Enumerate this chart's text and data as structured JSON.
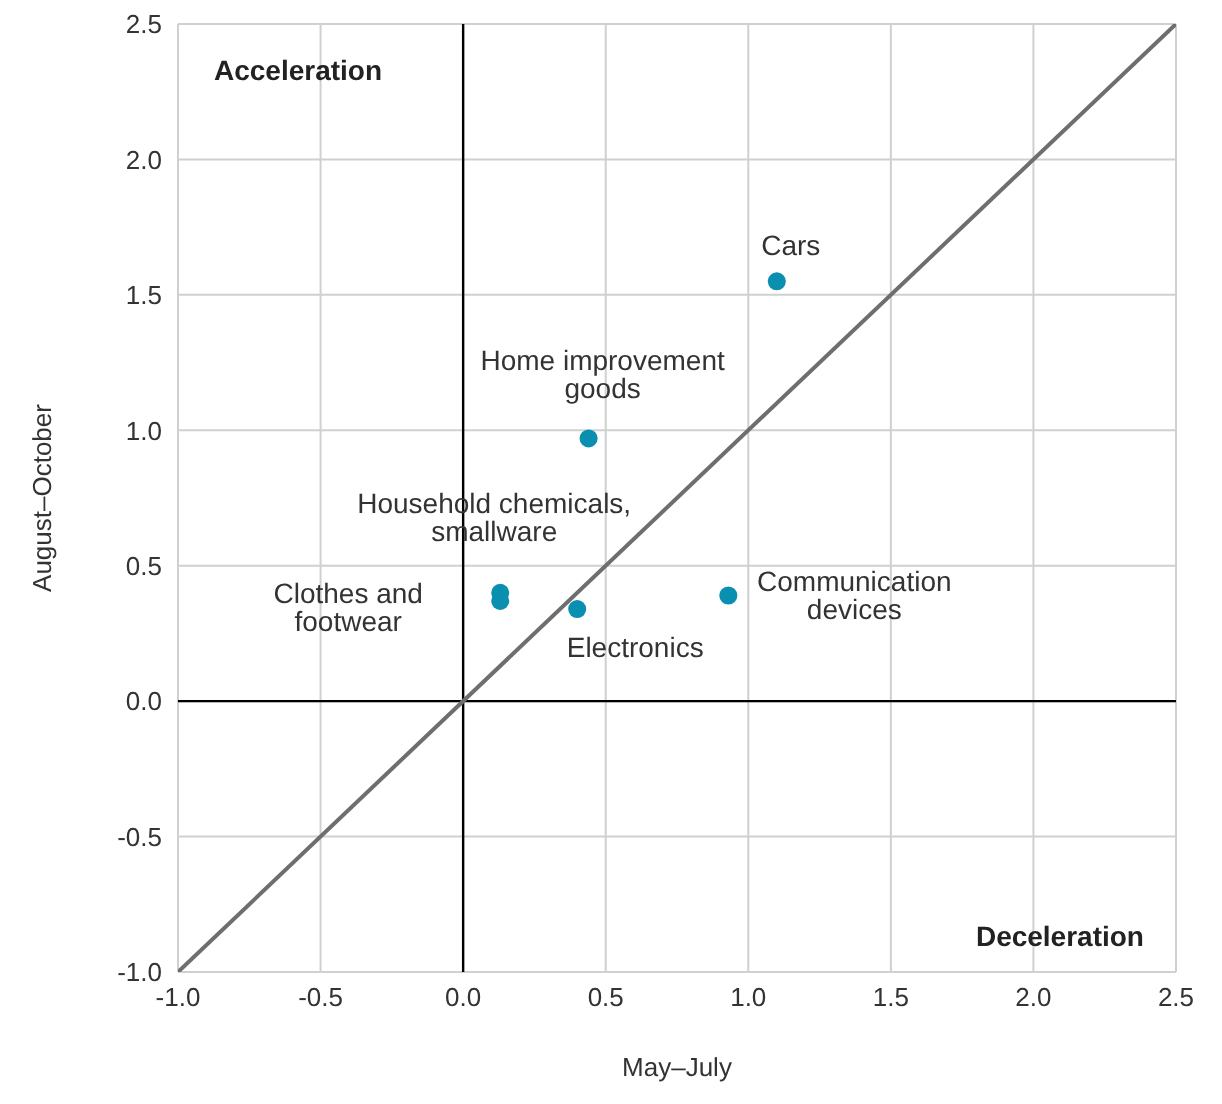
{
  "chart_data": {
    "type": "scatter",
    "xlabel": "May–July",
    "ylabel": "August–October",
    "xlim": [
      -1.0,
      2.5
    ],
    "ylim": [
      -1.0,
      2.5
    ],
    "xticks": [
      {
        "value": -1,
        "label": "-1.0"
      },
      {
        "value": -0.5,
        "label": "-0.5"
      },
      {
        "value": 0,
        "label": "0.0"
      },
      {
        "value": 0.5,
        "label": "0.5"
      },
      {
        "value": 1,
        "label": "1.0"
      },
      {
        "value": 1.5,
        "label": "1.5"
      },
      {
        "value": 2,
        "label": "2.0"
      },
      {
        "value": 2.5,
        "label": "2.5"
      }
    ],
    "yticks": [
      {
        "value": -1,
        "label": "-1.0"
      },
      {
        "value": -0.5,
        "label": "-0.5"
      },
      {
        "value": 0,
        "label": "0.0"
      },
      {
        "value": 0.5,
        "label": "0.5"
      },
      {
        "value": 1,
        "label": "1.0"
      },
      {
        "value": 1.5,
        "label": "1.5"
      },
      {
        "value": 2,
        "label": "2.0"
      },
      {
        "value": 2.5,
        "label": "2.5"
      }
    ],
    "grid": true,
    "legend": false,
    "marker": "circle",
    "series": [
      {
        "type": "scatter",
        "color": "#0b8fb0",
        "x": [
          1.1,
          0.44,
          0.13,
          0.13,
          0.4,
          0.93
        ],
        "values": [
          1.55,
          0.97,
          0.4,
          0.37,
          0.34,
          0.39
        ]
      },
      {
        "type": "line",
        "color": "#6e6e6e",
        "marker": "none",
        "x": [
          -1.0,
          2.5
        ],
        "values": [
          -1.0,
          2.5
        ]
      }
    ],
    "annotations": [
      {
        "text": "Cars",
        "x": 1.1,
        "y": 1.55
      },
      {
        "text": "Home improvement goods",
        "x": 0.44,
        "y": 0.97
      },
      {
        "text": "Household chemicals, smallware",
        "x": 0.13,
        "y": 0.4
      },
      {
        "text": "Clothes and footwear",
        "x": 0.13,
        "y": 0.37
      },
      {
        "text": "Electronics",
        "x": 0.4,
        "y": 0.34
      },
      {
        "text": "Communication devices",
        "x": 0.93,
        "y": 0.39
      },
      "Acceleration",
      "Deceleration"
    ]
  }
}
